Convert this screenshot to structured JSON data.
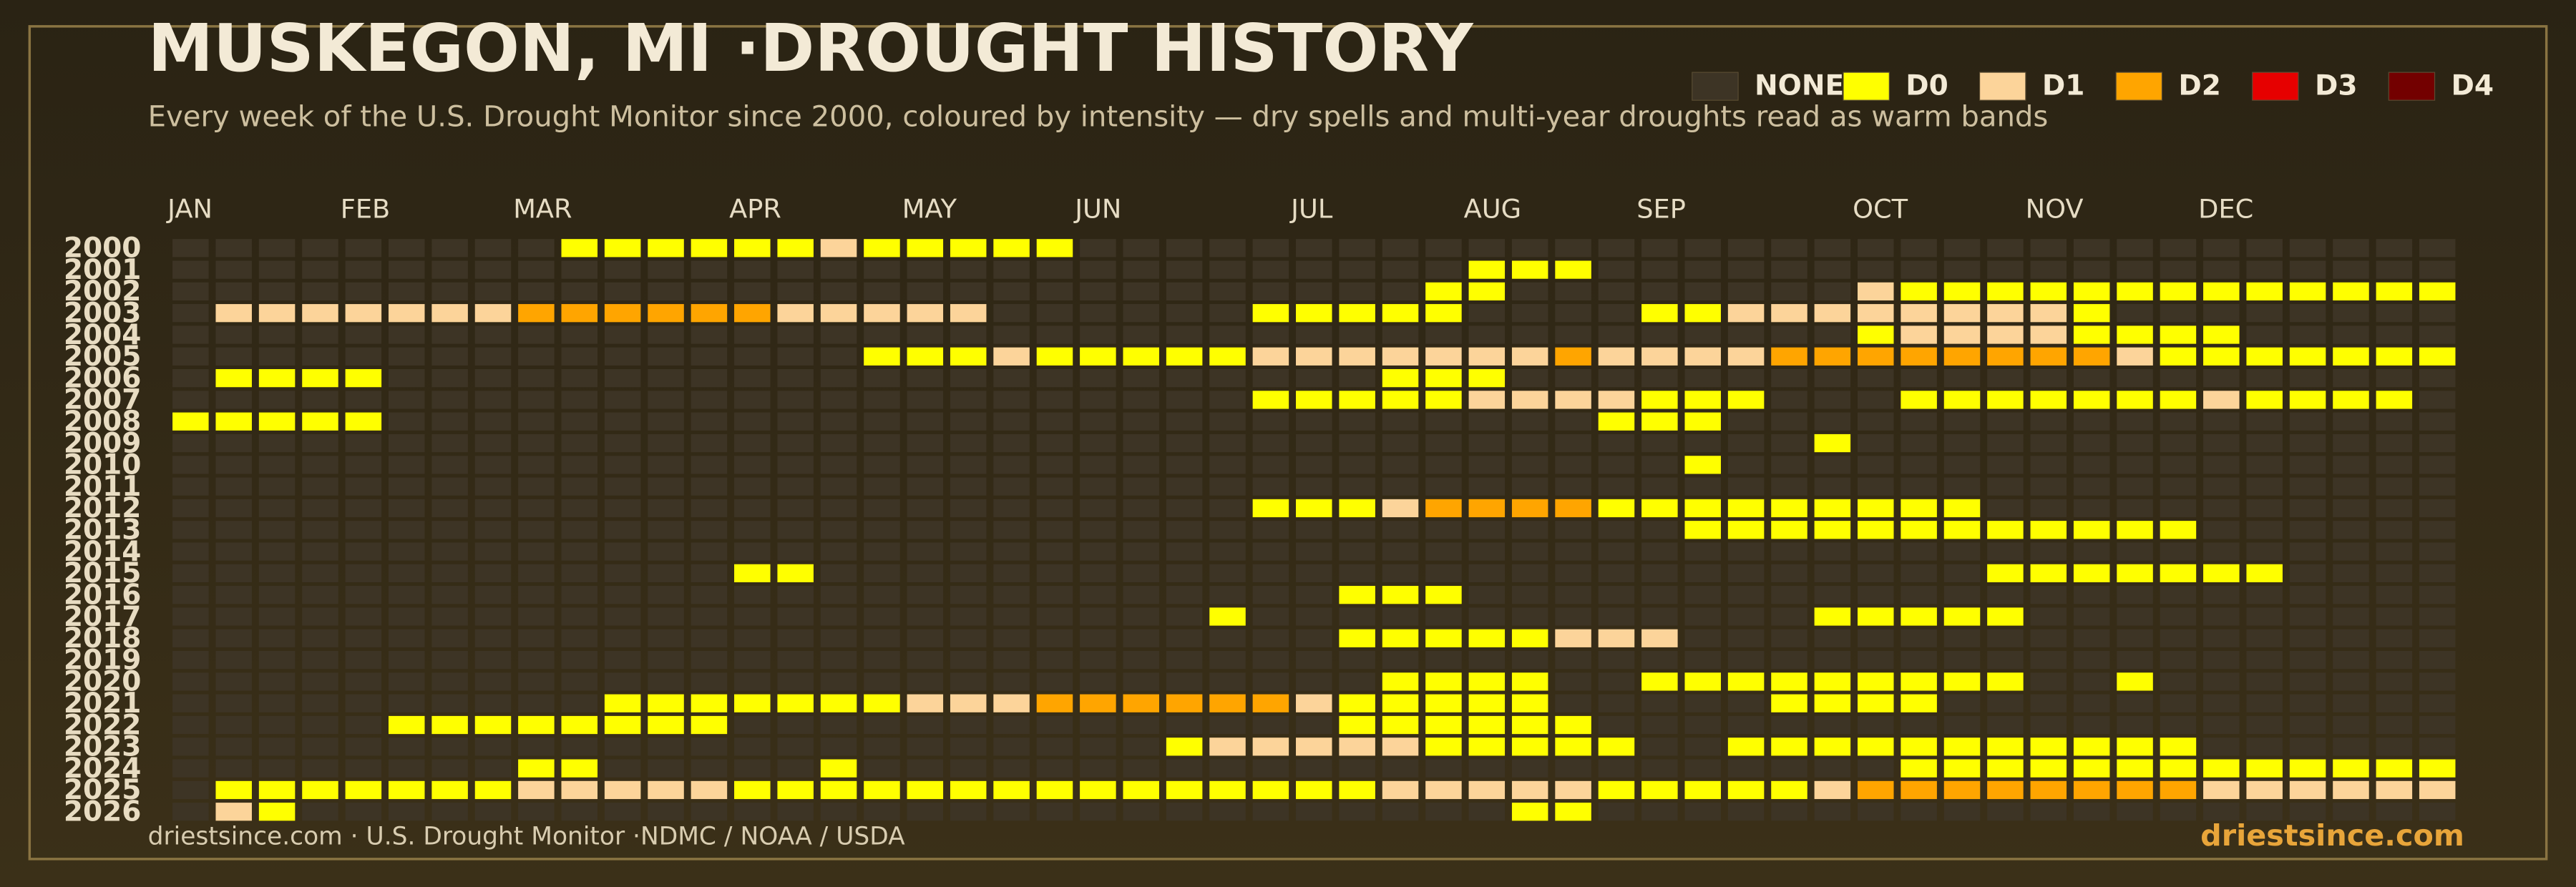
{
  "chart_data": {
    "type": "heatmap",
    "title": "MUSKEGON, MI ·DROUGHT HISTORY",
    "subtitle": "Every week of the U.S. Drought Monitor since 2000, coloured by intensity — dry spells and multi-year droughts read as warm bands",
    "source": "driestsince.com  · U.S. Drought Monitor ·NDMC / NOAA / USDA",
    "brand": "driestsince.com",
    "levels": [
      {
        "name": "NONE",
        "color": "#3d3425"
      },
      {
        "name": "D0",
        "color": "#ffff00"
      },
      {
        "name": "D1",
        "color": "#fcd49a"
      },
      {
        "name": "D2",
        "color": "#ffa500"
      },
      {
        "name": "D3",
        "color": "#e60000"
      },
      {
        "name": "D4",
        "color": "#730000"
      }
    ],
    "categories": [
      "JAN",
      null,
      null,
      null,
      "FEB",
      null,
      null,
      null,
      "MAR",
      null,
      null,
      null,
      null,
      "APR",
      null,
      null,
      null,
      "MAY",
      null,
      null,
      null,
      "JUN",
      null,
      null,
      null,
      null,
      "JUL",
      null,
      null,
      null,
      "AUG",
      null,
      null,
      null,
      "SEP",
      null,
      null,
      null,
      null,
      "OCT",
      null,
      null,
      null,
      "NOV",
      null,
      null,
      null,
      "DEC",
      null,
      null,
      null,
      null,
      null
    ],
    "rows": [
      "2000",
      "2001",
      "2002",
      "2003",
      "2004",
      "2005",
      "2006",
      "2007",
      "2008",
      "2009",
      "2010",
      "2011",
      "2012",
      "2013",
      "2014",
      "2015",
      "2016",
      "2017",
      "2018",
      "2019",
      "2020",
      "2021",
      "2022",
      "2023",
      "2024",
      "2025",
      "2026"
    ],
    "values": [
      [
        0,
        0,
        0,
        0,
        0,
        0,
        0,
        0,
        0,
        1,
        1,
        1,
        1,
        1,
        1,
        2,
        1,
        1,
        1,
        1,
        1,
        0,
        0,
        0,
        0,
        0,
        0,
        0,
        0,
        0,
        0,
        0,
        0,
        0,
        0,
        0,
        0,
        0,
        0,
        0,
        0,
        0,
        0,
        0,
        0,
        0,
        0,
        0,
        0,
        0,
        0,
        0,
        0
      ],
      [
        0,
        0,
        0,
        0,
        0,
        0,
        0,
        0,
        0,
        0,
        0,
        0,
        0,
        0,
        0,
        0,
        0,
        0,
        0,
        0,
        0,
        0,
        0,
        0,
        0,
        0,
        0,
        0,
        0,
        0,
        1,
        1,
        1,
        0,
        0,
        0,
        0,
        0,
        0,
        0,
        0,
        0,
        0,
        0,
        0,
        0,
        0,
        0,
        0,
        0,
        0,
        0,
        0
      ],
      [
        0,
        0,
        0,
        0,
        0,
        0,
        0,
        0,
        0,
        0,
        0,
        0,
        0,
        0,
        0,
        0,
        0,
        0,
        0,
        0,
        0,
        0,
        0,
        0,
        0,
        0,
        0,
        0,
        0,
        1,
        1,
        0,
        0,
        0,
        0,
        0,
        0,
        0,
        0,
        2,
        1,
        1,
        1,
        1,
        1,
        1,
        1,
        1,
        1,
        1,
        1,
        1,
        1
      ],
      [
        0,
        2,
        2,
        2,
        2,
        2,
        2,
        2,
        3,
        3,
        3,
        3,
        3,
        3,
        2,
        2,
        2,
        2,
        2,
        0,
        0,
        0,
        0,
        0,
        0,
        1,
        1,
        1,
        1,
        1,
        0,
        0,
        0,
        0,
        1,
        1,
        2,
        2,
        2,
        2,
        2,
        2,
        2,
        2,
        1,
        0,
        0,
        0,
        0,
        0,
        0,
        0,
        0
      ],
      [
        0,
        0,
        0,
        0,
        0,
        0,
        0,
        0,
        0,
        0,
        0,
        0,
        0,
        0,
        0,
        0,
        0,
        0,
        0,
        0,
        0,
        0,
        0,
        0,
        0,
        0,
        0,
        0,
        0,
        0,
        0,
        0,
        0,
        0,
        0,
        0,
        0,
        0,
        0,
        1,
        2,
        2,
        2,
        2,
        1,
        1,
        1,
        1,
        0,
        0,
        0,
        0,
        0
      ],
      [
        0,
        0,
        0,
        0,
        0,
        0,
        0,
        0,
        0,
        0,
        0,
        0,
        0,
        0,
        0,
        0,
        1,
        1,
        1,
        2,
        1,
        1,
        1,
        1,
        1,
        2,
        2,
        2,
        2,
        2,
        2,
        2,
        3,
        2,
        2,
        2,
        2,
        3,
        3,
        3,
        3,
        3,
        3,
        3,
        3,
        2,
        1,
        1,
        1,
        1,
        1,
        1,
        1
      ],
      [
        0,
        1,
        1,
        1,
        1,
        0,
        0,
        0,
        0,
        0,
        0,
        0,
        0,
        0,
        0,
        0,
        0,
        0,
        0,
        0,
        0,
        0,
        0,
        0,
        0,
        0,
        0,
        0,
        1,
        1,
        1,
        0,
        0,
        0,
        0,
        0,
        0,
        0,
        0,
        0,
        0,
        0,
        0,
        0,
        0,
        0,
        0,
        0,
        0,
        0,
        0,
        0,
        0
      ],
      [
        0,
        0,
        0,
        0,
        0,
        0,
        0,
        0,
        0,
        0,
        0,
        0,
        0,
        0,
        0,
        0,
        0,
        0,
        0,
        0,
        0,
        0,
        0,
        0,
        0,
        1,
        1,
        1,
        1,
        1,
        2,
        2,
        2,
        2,
        1,
        1,
        1,
        0,
        0,
        0,
        1,
        1,
        1,
        1,
        1,
        1,
        1,
        2,
        1,
        1,
        1,
        1,
        0
      ],
      [
        1,
        1,
        1,
        1,
        1,
        0,
        0,
        0,
        0,
        0,
        0,
        0,
        0,
        0,
        0,
        0,
        0,
        0,
        0,
        0,
        0,
        0,
        0,
        0,
        0,
        0,
        0,
        0,
        0,
        0,
        0,
        0,
        0,
        1,
        1,
        1,
        0,
        0,
        0,
        0,
        0,
        0,
        0,
        0,
        0,
        0,
        0,
        0,
        0,
        0,
        0,
        0,
        0
      ],
      [
        0,
        0,
        0,
        0,
        0,
        0,
        0,
        0,
        0,
        0,
        0,
        0,
        0,
        0,
        0,
        0,
        0,
        0,
        0,
        0,
        0,
        0,
        0,
        0,
        0,
        0,
        0,
        0,
        0,
        0,
        0,
        0,
        0,
        0,
        0,
        0,
        0,
        0,
        1,
        0,
        0,
        0,
        0,
        0,
        0,
        0,
        0,
        0,
        0,
        0,
        0,
        0,
        0
      ],
      [
        0,
        0,
        0,
        0,
        0,
        0,
        0,
        0,
        0,
        0,
        0,
        0,
        0,
        0,
        0,
        0,
        0,
        0,
        0,
        0,
        0,
        0,
        0,
        0,
        0,
        0,
        0,
        0,
        0,
        0,
        0,
        0,
        0,
        0,
        0,
        1,
        0,
        0,
        0,
        0,
        0,
        0,
        0,
        0,
        0,
        0,
        0,
        0,
        0,
        0,
        0,
        0,
        0
      ],
      [
        0,
        0,
        0,
        0,
        0,
        0,
        0,
        0,
        0,
        0,
        0,
        0,
        0,
        0,
        0,
        0,
        0,
        0,
        0,
        0,
        0,
        0,
        0,
        0,
        0,
        0,
        0,
        0,
        0,
        0,
        0,
        0,
        0,
        0,
        0,
        0,
        0,
        0,
        0,
        0,
        0,
        0,
        0,
        0,
        0,
        0,
        0,
        0,
        0,
        0,
        0,
        0,
        0
      ],
      [
        0,
        0,
        0,
        0,
        0,
        0,
        0,
        0,
        0,
        0,
        0,
        0,
        0,
        0,
        0,
        0,
        0,
        0,
        0,
        0,
        0,
        0,
        0,
        0,
        0,
        1,
        1,
        1,
        2,
        3,
        3,
        3,
        3,
        1,
        1,
        1,
        1,
        1,
        1,
        1,
        1,
        1,
        0,
        0,
        0,
        0,
        0,
        0,
        0,
        0,
        0,
        0,
        0
      ],
      [
        0,
        0,
        0,
        0,
        0,
        0,
        0,
        0,
        0,
        0,
        0,
        0,
        0,
        0,
        0,
        0,
        0,
        0,
        0,
        0,
        0,
        0,
        0,
        0,
        0,
        0,
        0,
        0,
        0,
        0,
        0,
        0,
        0,
        0,
        0,
        1,
        1,
        1,
        1,
        1,
        1,
        1,
        1,
        1,
        1,
        1,
        1,
        0,
        0,
        0,
        0,
        0,
        0
      ],
      [
        0,
        0,
        0,
        0,
        0,
        0,
        0,
        0,
        0,
        0,
        0,
        0,
        0,
        0,
        0,
        0,
        0,
        0,
        0,
        0,
        0,
        0,
        0,
        0,
        0,
        0,
        0,
        0,
        0,
        0,
        0,
        0,
        0,
        0,
        0,
        0,
        0,
        0,
        0,
        0,
        0,
        0,
        0,
        0,
        0,
        0,
        0,
        0,
        0,
        0,
        0,
        0,
        0
      ],
      [
        0,
        0,
        0,
        0,
        0,
        0,
        0,
        0,
        0,
        0,
        0,
        0,
        0,
        1,
        1,
        0,
        0,
        0,
        0,
        0,
        0,
        0,
        0,
        0,
        0,
        0,
        0,
        0,
        0,
        0,
        0,
        0,
        0,
        0,
        0,
        0,
        0,
        0,
        0,
        0,
        0,
        0,
        1,
        1,
        1,
        1,
        1,
        1,
        1,
        0,
        0,
        0,
        0
      ],
      [
        0,
        0,
        0,
        0,
        0,
        0,
        0,
        0,
        0,
        0,
        0,
        0,
        0,
        0,
        0,
        0,
        0,
        0,
        0,
        0,
        0,
        0,
        0,
        0,
        0,
        0,
        0,
        1,
        1,
        1,
        0,
        0,
        0,
        0,
        0,
        0,
        0,
        0,
        0,
        0,
        0,
        0,
        0,
        0,
        0,
        0,
        0,
        0,
        0,
        0,
        0,
        0,
        0
      ],
      [
        0,
        0,
        0,
        0,
        0,
        0,
        0,
        0,
        0,
        0,
        0,
        0,
        0,
        0,
        0,
        0,
        0,
        0,
        0,
        0,
        0,
        0,
        0,
        0,
        1,
        0,
        0,
        0,
        0,
        0,
        0,
        0,
        0,
        0,
        0,
        0,
        0,
        0,
        1,
        1,
        1,
        1,
        1,
        0,
        0,
        0,
        0,
        0,
        0,
        0,
        0,
        0,
        0
      ],
      [
        0,
        0,
        0,
        0,
        0,
        0,
        0,
        0,
        0,
        0,
        0,
        0,
        0,
        0,
        0,
        0,
        0,
        0,
        0,
        0,
        0,
        0,
        0,
        0,
        0,
        0,
        0,
        1,
        1,
        1,
        1,
        1,
        2,
        2,
        2,
        0,
        0,
        0,
        0,
        0,
        0,
        0,
        0,
        0,
        0,
        0,
        0,
        0,
        0,
        0,
        0,
        0,
        0
      ],
      [
        0,
        0,
        0,
        0,
        0,
        0,
        0,
        0,
        0,
        0,
        0,
        0,
        0,
        0,
        0,
        0,
        0,
        0,
        0,
        0,
        0,
        0,
        0,
        0,
        0,
        0,
        0,
        0,
        0,
        0,
        0,
        0,
        0,
        0,
        0,
        0,
        0,
        0,
        0,
        0,
        0,
        0,
        0,
        0,
        0,
        0,
        0,
        0,
        0,
        0,
        0,
        0,
        0
      ],
      [
        0,
        0,
        0,
        0,
        0,
        0,
        0,
        0,
        0,
        0,
        0,
        0,
        0,
        0,
        0,
        0,
        0,
        0,
        0,
        0,
        0,
        0,
        0,
        0,
        0,
        0,
        0,
        0,
        1,
        1,
        1,
        1,
        0,
        0,
        1,
        1,
        1,
        1,
        1,
        1,
        1,
        1,
        1,
        0,
        0,
        1,
        0,
        0,
        0,
        0,
        0,
        0,
        0
      ],
      [
        0,
        0,
        0,
        0,
        0,
        0,
        0,
        0,
        0,
        0,
        1,
        1,
        1,
        1,
        1,
        1,
        1,
        2,
        2,
        2,
        3,
        3,
        3,
        3,
        3,
        3,
        2,
        1,
        1,
        1,
        1,
        1,
        0,
        0,
        0,
        0,
        0,
        1,
        1,
        1,
        1,
        0,
        0,
        0,
        0,
        0,
        0,
        0,
        0,
        0,
        0,
        0,
        0
      ],
      [
        0,
        0,
        0,
        0,
        0,
        1,
        1,
        1,
        1,
        1,
        1,
        1,
        1,
        0,
        0,
        0,
        0,
        0,
        0,
        0,
        0,
        0,
        0,
        0,
        0,
        0,
        0,
        1,
        1,
        1,
        1,
        1,
        1,
        0,
        0,
        0,
        0,
        0,
        0,
        0,
        0,
        0,
        0,
        0,
        0,
        0,
        0,
        0,
        0,
        0,
        0,
        0,
        0
      ],
      [
        0,
        0,
        0,
        0,
        0,
        0,
        0,
        0,
        0,
        0,
        0,
        0,
        0,
        0,
        0,
        0,
        0,
        0,
        0,
        0,
        0,
        0,
        0,
        1,
        2,
        2,
        2,
        2,
        2,
        1,
        1,
        1,
        1,
        1,
        0,
        0,
        1,
        1,
        1,
        1,
        1,
        1,
        1,
        1,
        1,
        1,
        1,
        0,
        0,
        0,
        0,
        0,
        0
      ],
      [
        0,
        0,
        0,
        0,
        0,
        0,
        0,
        0,
        1,
        1,
        0,
        0,
        0,
        0,
        0,
        1,
        0,
        0,
        0,
        0,
        0,
        0,
        0,
        0,
        0,
        0,
        0,
        0,
        0,
        0,
        0,
        0,
        0,
        0,
        0,
        0,
        0,
        0,
        0,
        0,
        1,
        1,
        1,
        1,
        1,
        1,
        1,
        1,
        1,
        1,
        1,
        1,
        1
      ],
      [
        0,
        1,
        1,
        1,
        1,
        1,
        1,
        1,
        2,
        2,
        2,
        2,
        2,
        1,
        1,
        1,
        1,
        1,
        1,
        1,
        1,
        1,
        1,
        1,
        1,
        1,
        1,
        1,
        2,
        2,
        2,
        2,
        2,
        1,
        1,
        1,
        1,
        1,
        2,
        3,
        3,
        3,
        3,
        3,
        3,
        3,
        3,
        2,
        2,
        2,
        2,
        2,
        2
      ],
      [
        0,
        2,
        1,
        0,
        0,
        0,
        0,
        0,
        0,
        0,
        0,
        0,
        0,
        0,
        0,
        0,
        0,
        0,
        0,
        0,
        0,
        0,
        0,
        0,
        0,
        0,
        0,
        0,
        0,
        0,
        0,
        1,
        1,
        0,
        0,
        0,
        0,
        0,
        0,
        0,
        0,
        0,
        0,
        0,
        0,
        0,
        0,
        0,
        0,
        0,
        0,
        0,
        0
      ]
    ]
  }
}
